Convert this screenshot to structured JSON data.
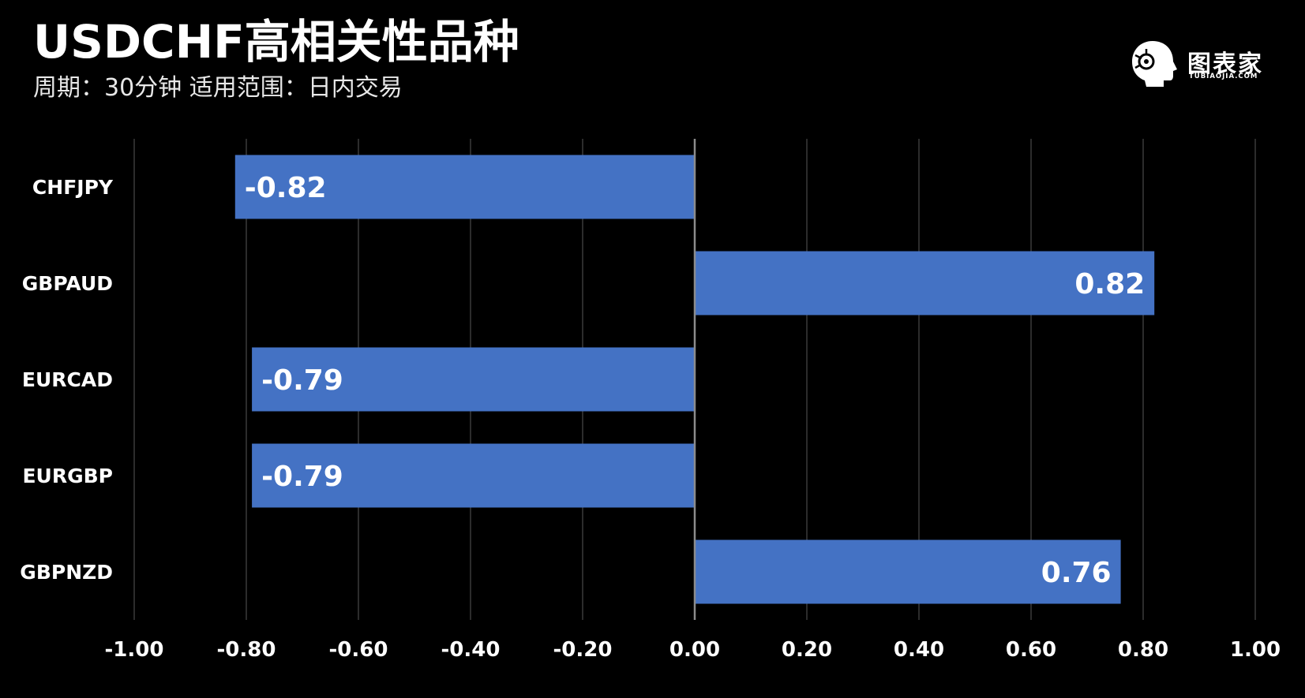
{
  "title": "USDCHF高相关性品种",
  "subtitle": "周期：30分钟  适用范围：日内交易",
  "logo": {
    "name": "图表家",
    "domain": "TUBIAOJIA.COM",
    "icon": "head-profile-icon"
  },
  "colors": {
    "background": "#000000",
    "bar": "#4472c4",
    "grid": "#3a3a3a",
    "text": "#ffffff"
  },
  "chart_data": {
    "type": "bar",
    "orientation": "horizontal",
    "title": "USDCHF高相关性品种",
    "subtitle": "周期：30分钟  适用范围：日内交易",
    "categories": [
      "CHFJPY",
      "GBPAUD",
      "EURCAD",
      "EURGBP",
      "GBPNZD"
    ],
    "values": [
      -0.82,
      0.82,
      -0.79,
      -0.79,
      0.76
    ],
    "data_labels": [
      "-0.82",
      "0.82",
      "-0.79",
      "-0.79",
      "0.76"
    ],
    "xlim": [
      -1.0,
      1.0
    ],
    "xticks": [
      -1.0,
      -0.8,
      -0.6,
      -0.4,
      -0.2,
      0.0,
      0.2,
      0.4,
      0.6,
      0.8,
      1.0
    ],
    "xtick_labels": [
      "-1.00",
      "-0.80",
      "-0.60",
      "-0.40",
      "-0.20",
      "0.00",
      "0.20",
      "0.40",
      "0.60",
      "0.80",
      "1.00"
    ],
    "grid": "vertical",
    "legend": "none"
  }
}
